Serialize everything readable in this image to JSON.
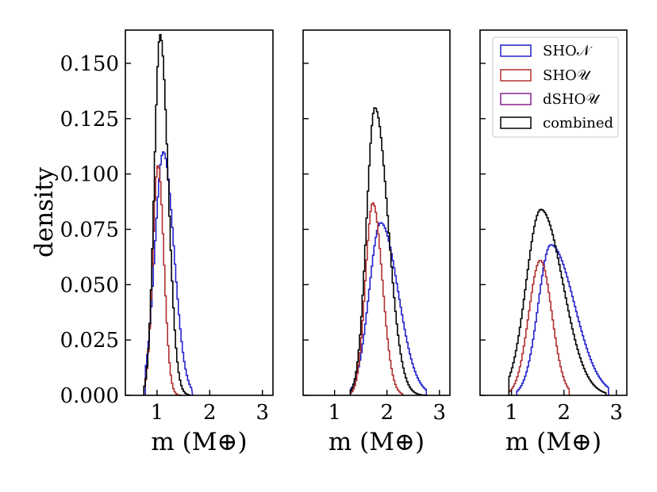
{
  "chart_data": {
    "type": "histogram",
    "ylabel": "density",
    "xlabel": "m (M⊕)",
    "ylim": [
      0,
      0.165
    ],
    "xlim": [
      0.4,
      3.2
    ],
    "xticks": [
      1,
      2,
      3
    ],
    "yticks": [
      "0.000",
      "0.025",
      "0.050",
      "0.075",
      "0.100",
      "0.125",
      "0.150"
    ],
    "legend": {
      "placement": "top-right of third panel",
      "entries": [
        {
          "label": "SHO𝒩",
          "color": "#2222cc"
        },
        {
          "label": "SHO𝒰",
          "color": "#b03030"
        },
        {
          "label": "dSHO𝒰",
          "color": "#8a2090"
        },
        {
          "label": "combined",
          "color": "#000000"
        }
      ]
    },
    "panels": [
      {
        "name": "panel-1",
        "series": [
          {
            "name": "SHO𝒩",
            "color": "#2222cc",
            "peak_x": 1.12,
            "peak_y": 0.11,
            "sigma_l": 0.16,
            "sigma_r": 0.2,
            "xmin": 0.78,
            "xmax": 1.65
          },
          {
            "name": "SHO𝒰",
            "color": "#b03030",
            "peak_x": 1.02,
            "peak_y": 0.104,
            "sigma_l": 0.1,
            "sigma_r": 0.11,
            "xmin": 0.75,
            "xmax": 1.45
          },
          {
            "name": "combined",
            "color": "#000000",
            "peak_x": 1.06,
            "peak_y": 0.163,
            "sigma_l": 0.11,
            "sigma_r": 0.15,
            "xmin": 0.75,
            "xmax": 1.62
          }
        ]
      },
      {
        "name": "panel-2",
        "series": [
          {
            "name": "SHO𝒩",
            "color": "#2222cc",
            "peak_x": 1.88,
            "peak_y": 0.078,
            "sigma_l": 0.22,
            "sigma_r": 0.33,
            "xmin": 1.3,
            "xmax": 2.75
          },
          {
            "name": "SHO𝒰",
            "color": "#b03030",
            "peak_x": 1.73,
            "peak_y": 0.087,
            "sigma_l": 0.14,
            "sigma_r": 0.18,
            "xmin": 1.3,
            "xmax": 2.3
          },
          {
            "name": "combined",
            "color": "#000000",
            "peak_x": 1.77,
            "peak_y": 0.13,
            "sigma_l": 0.16,
            "sigma_r": 0.25,
            "xmin": 1.3,
            "xmax": 2.75
          }
        ]
      },
      {
        "name": "panel-3",
        "series": [
          {
            "name": "SHO𝒩",
            "color": "#2222cc",
            "peak_x": 1.75,
            "peak_y": 0.068,
            "sigma_l": 0.24,
            "sigma_r": 0.45,
            "xmin": 1.1,
            "xmax": 2.85
          },
          {
            "name": "SHO𝒰",
            "color": "#b03030",
            "peak_x": 1.55,
            "peak_y": 0.061,
            "sigma_l": 0.22,
            "sigma_r": 0.22,
            "xmin": 0.95,
            "xmax": 2.1
          },
          {
            "name": "combined",
            "color": "#000000",
            "peak_x": 1.56,
            "peak_y": 0.084,
            "sigma_l": 0.28,
            "sigma_r": 0.42,
            "xmin": 0.95,
            "xmax": 2.8
          }
        ]
      }
    ]
  }
}
